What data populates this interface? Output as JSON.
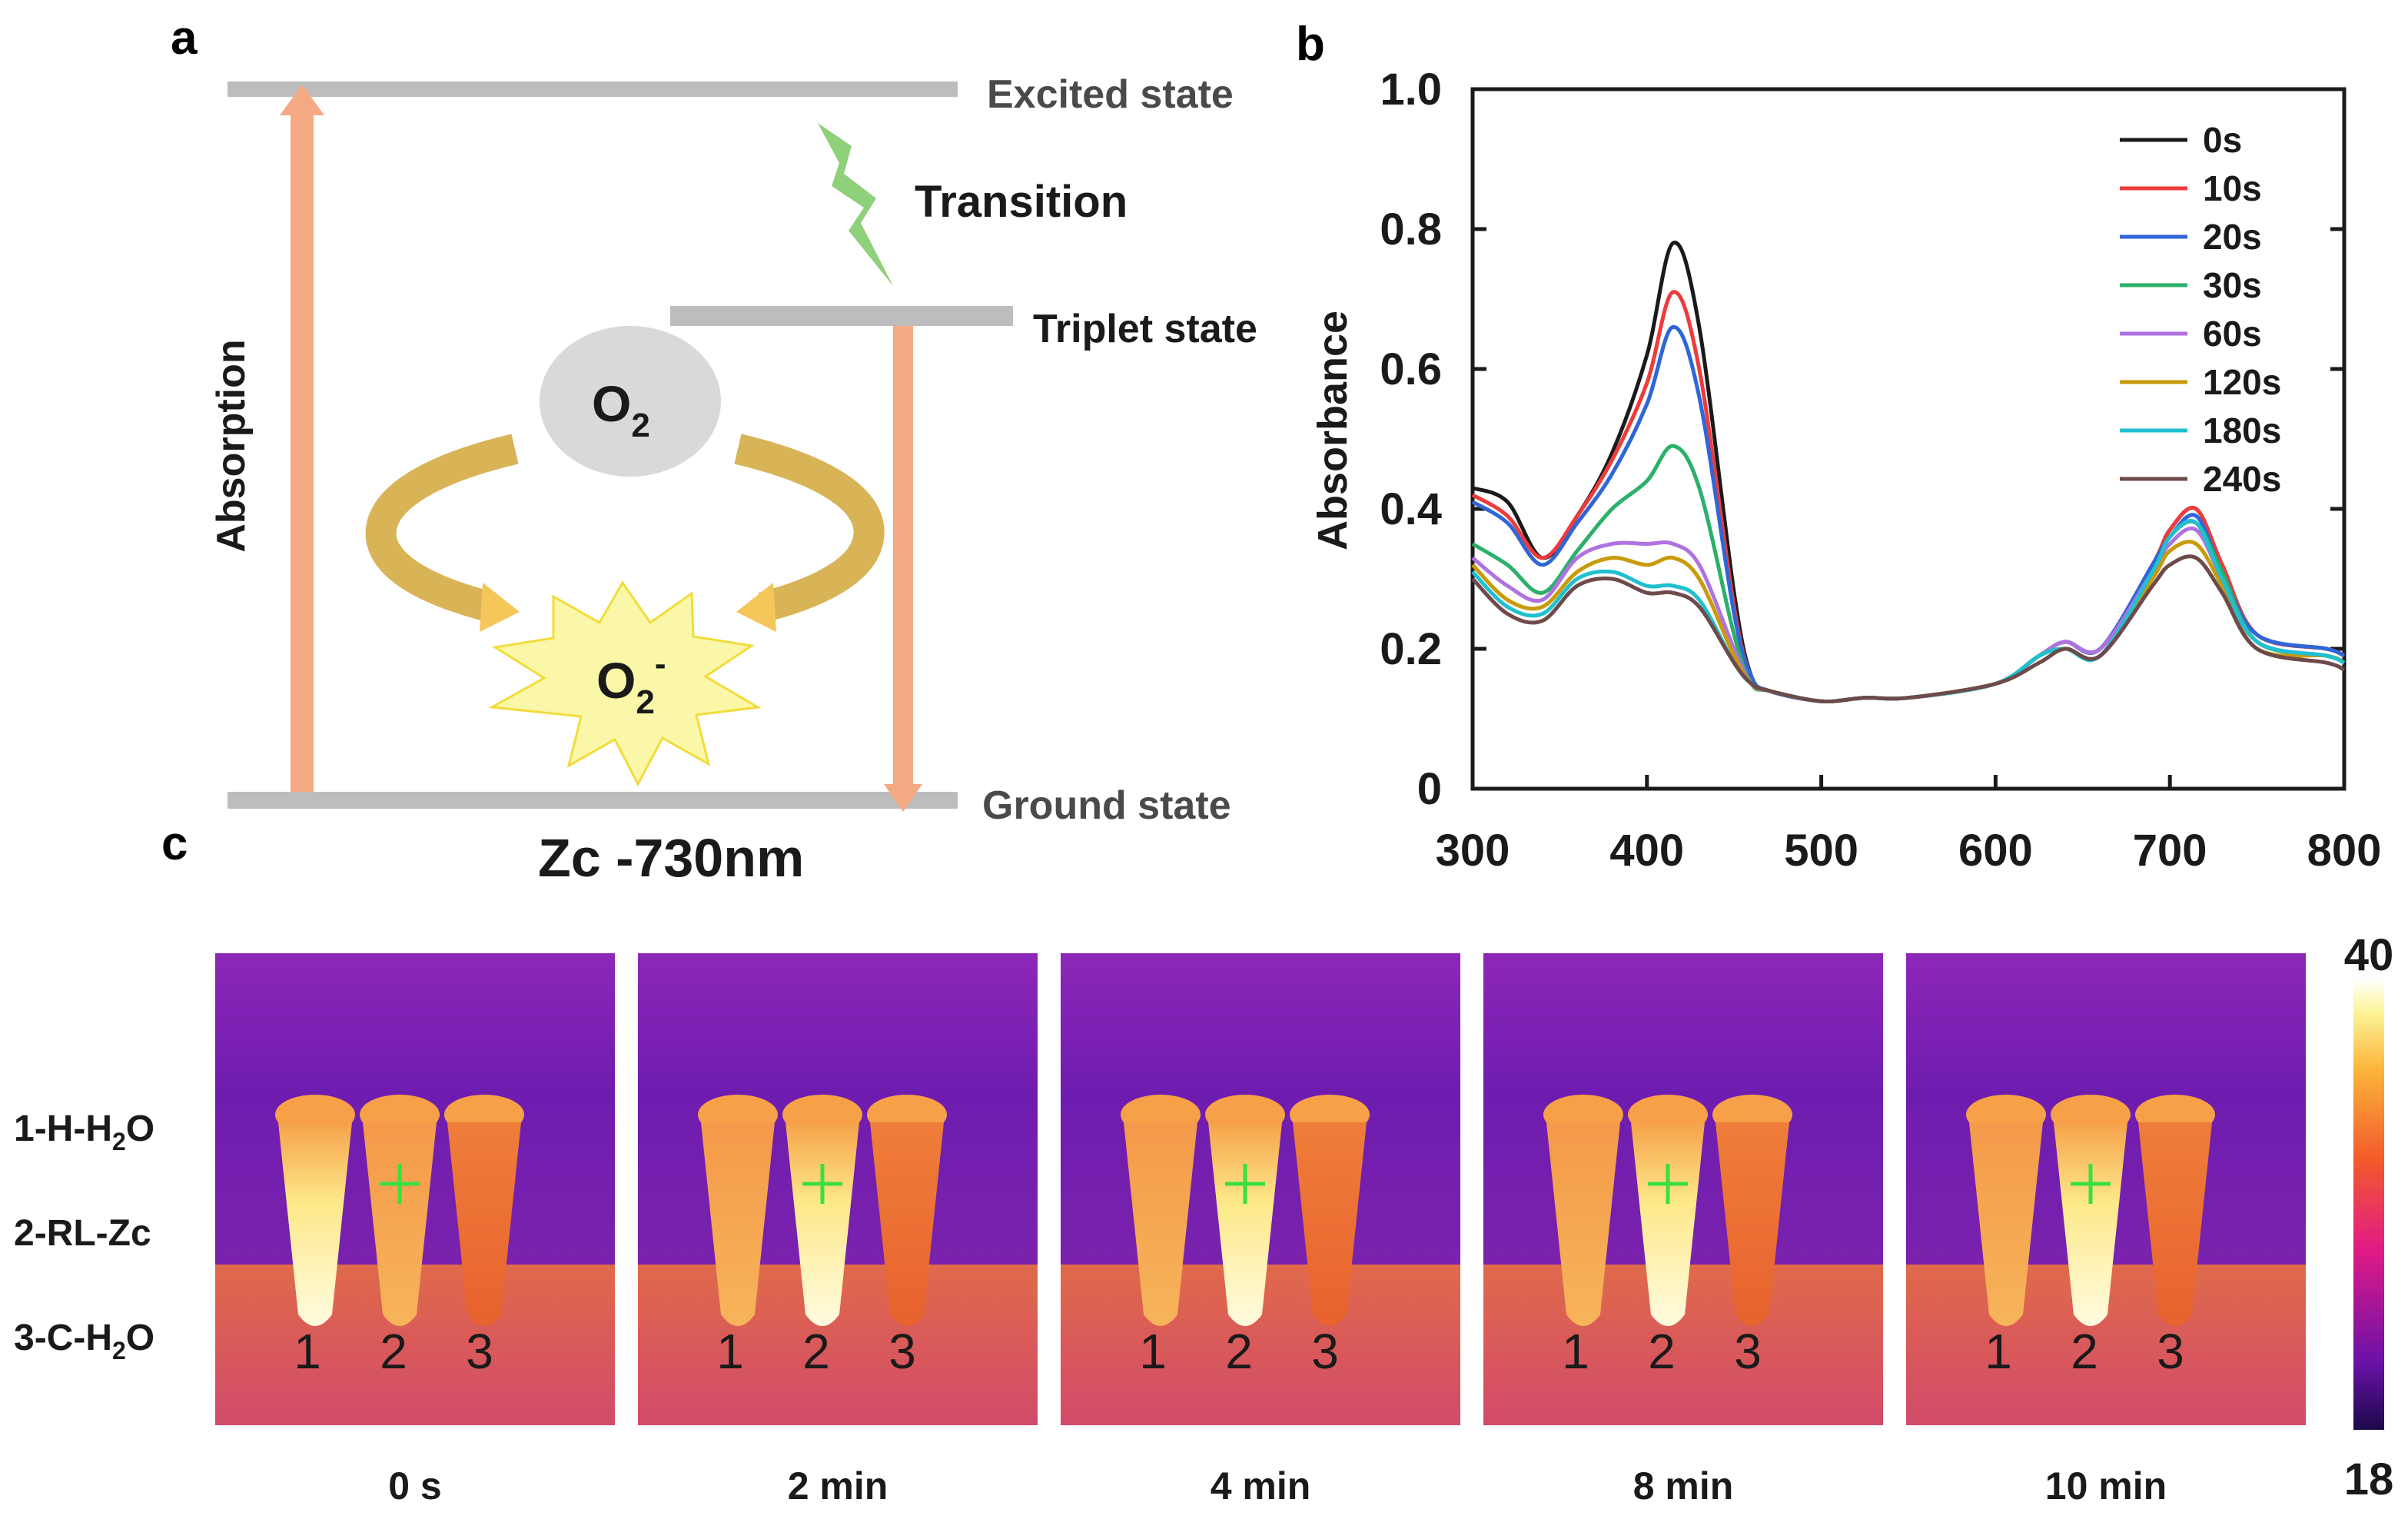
{
  "panel_labels": {
    "a": "a",
    "b": "b",
    "c": "c"
  },
  "panel_a": {
    "excited_state": "Excited state",
    "triplet_state": "Triplet state",
    "ground_state": "Ground state",
    "transition": "Transition",
    "absorption": "Absorption",
    "o2": "O",
    "o2_sub": "2",
    "superoxide": "O",
    "superoxide_sub": "2",
    "superoxide_sup": "-",
    "compound": "Zc -730nm",
    "colors": {
      "arrow": "#f5a983",
      "level": "#bdbdbd",
      "bolt": "#8fd07a",
      "cycle": "#f2c766",
      "star": "#fbf7a8"
    }
  },
  "chart_data": {
    "type": "line",
    "title": "",
    "xlabel": "",
    "ylabel": "Absorbance",
    "xlim": [
      300,
      800
    ],
    "ylim": [
      0,
      1.0
    ],
    "x_ticks": [
      "300",
      "400",
      "500",
      "600",
      "700",
      "800"
    ],
    "y_ticks": [
      "0",
      "0.2",
      "0.4",
      "0.6",
      "0.8",
      "1.0"
    ],
    "legend_position": "top-right",
    "x": [
      300,
      320,
      340,
      360,
      380,
      400,
      415,
      430,
      450,
      460,
      470,
      500,
      525,
      550,
      600,
      625,
      640,
      660,
      690,
      700,
      715,
      730,
      750,
      790,
      800
    ],
    "series": [
      {
        "name": "0s",
        "color": "#1a1a1a",
        "values": [
          0.43,
          0.41,
          0.33,
          0.39,
          0.48,
          0.62,
          0.78,
          0.66,
          0.28,
          0.16,
          0.14,
          0.125,
          0.13,
          0.13,
          0.15,
          0.19,
          0.21,
          0.2,
          0.32,
          0.37,
          0.4,
          0.32,
          0.22,
          0.2,
          0.19
        ]
      },
      {
        "name": "10s",
        "color": "#ee3b3b",
        "values": [
          0.42,
          0.39,
          0.33,
          0.39,
          0.47,
          0.58,
          0.71,
          0.6,
          0.26,
          0.16,
          0.14,
          0.125,
          0.13,
          0.13,
          0.15,
          0.19,
          0.21,
          0.2,
          0.32,
          0.37,
          0.4,
          0.32,
          0.22,
          0.2,
          0.19
        ]
      },
      {
        "name": "20s",
        "color": "#2f66d8",
        "values": [
          0.41,
          0.38,
          0.32,
          0.38,
          0.45,
          0.55,
          0.66,
          0.56,
          0.25,
          0.16,
          0.14,
          0.125,
          0.13,
          0.13,
          0.15,
          0.19,
          0.21,
          0.2,
          0.32,
          0.36,
          0.39,
          0.31,
          0.22,
          0.2,
          0.19
        ]
      },
      {
        "name": "30s",
        "color": "#2bb06a",
        "values": [
          0.35,
          0.32,
          0.28,
          0.34,
          0.4,
          0.44,
          0.49,
          0.43,
          0.22,
          0.15,
          0.14,
          0.125,
          0.13,
          0.13,
          0.15,
          0.19,
          0.21,
          0.2,
          0.31,
          0.36,
          0.38,
          0.31,
          0.21,
          0.19,
          0.18
        ]
      },
      {
        "name": "60s",
        "color": "#b072e0",
        "values": [
          0.33,
          0.29,
          0.27,
          0.33,
          0.35,
          0.35,
          0.35,
          0.32,
          0.2,
          0.15,
          0.14,
          0.125,
          0.13,
          0.13,
          0.15,
          0.19,
          0.21,
          0.2,
          0.31,
          0.35,
          0.37,
          0.3,
          0.21,
          0.19,
          0.18
        ]
      },
      {
        "name": "120s",
        "color": "#c99a0a",
        "values": [
          0.32,
          0.27,
          0.26,
          0.31,
          0.33,
          0.32,
          0.33,
          0.3,
          0.19,
          0.15,
          0.14,
          0.125,
          0.13,
          0.13,
          0.15,
          0.19,
          0.2,
          0.19,
          0.3,
          0.34,
          0.35,
          0.29,
          0.2,
          0.19,
          0.18
        ]
      },
      {
        "name": "180s",
        "color": "#1fc0d0",
        "values": [
          0.31,
          0.26,
          0.25,
          0.3,
          0.31,
          0.29,
          0.29,
          0.27,
          0.18,
          0.15,
          0.14,
          0.125,
          0.13,
          0.13,
          0.15,
          0.19,
          0.2,
          0.19,
          0.31,
          0.36,
          0.38,
          0.3,
          0.21,
          0.19,
          0.18
        ]
      },
      {
        "name": "240s",
        "color": "#6e4a4a",
        "values": [
          0.3,
          0.25,
          0.24,
          0.29,
          0.3,
          0.28,
          0.28,
          0.26,
          0.18,
          0.15,
          0.14,
          0.125,
          0.13,
          0.13,
          0.15,
          0.18,
          0.2,
          0.19,
          0.29,
          0.32,
          0.33,
          0.28,
          0.2,
          0.18,
          0.17
        ]
      }
    ]
  },
  "panel_c": {
    "sample_labels": [
      {
        "prefix": "1-H-H",
        "sub": "2",
        "suffix": "O"
      },
      {
        "prefix": "2-RL-Zc",
        "sub": "",
        "suffix": ""
      },
      {
        "prefix": "3-C-H",
        "sub": "2",
        "suffix": "O"
      }
    ],
    "tube_numbers": [
      "1",
      "2",
      "3"
    ],
    "time_labels": [
      "0 s",
      "2 min",
      "4 min",
      "8 min",
      "10 min"
    ],
    "colorbar": {
      "max": "40",
      "min": "18"
    }
  }
}
